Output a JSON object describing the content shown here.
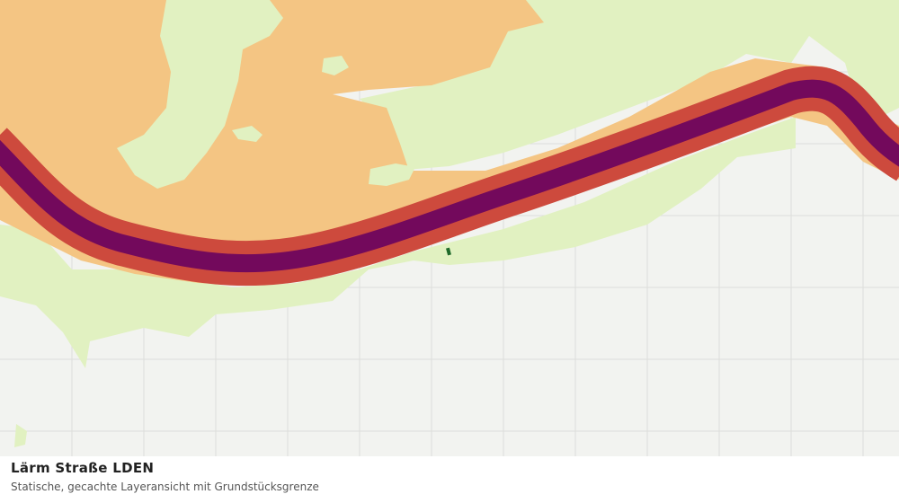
{
  "header": {
    "title": "Lärm Straße LDEN",
    "subtitle": "Statische, gecachte Layeransicht mit Grundstücksgrenze"
  }
}
